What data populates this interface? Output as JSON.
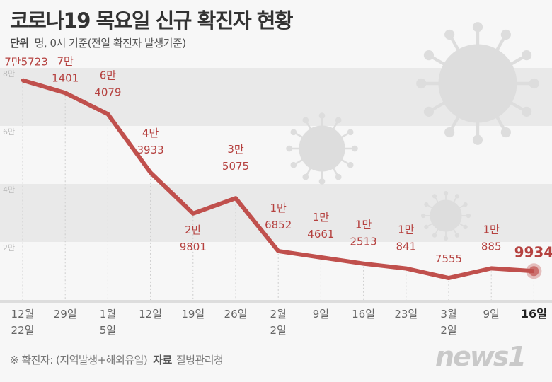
{
  "header": {
    "title": "코로나19 목요일 신규 확진자 현황",
    "unit_label": "단위",
    "unit_text": "명, 0시 기준(전일 확진자 발생기준)"
  },
  "footer": {
    "note": "※ 확진자: (지역발생+해외유입)",
    "source_label": "자료",
    "source": "질병관리청",
    "logo": "news1"
  },
  "colors": {
    "line": "#c0504d",
    "label": "#b5413f",
    "band": "#e9e9e9"
  },
  "chart_data": {
    "type": "line",
    "title": "코로나19 목요일 신규 확진자 현황",
    "ylabel": "명",
    "ylim": [
      0,
      80000
    ],
    "yticks": [
      {
        "v": 20000,
        "label": "2만"
      },
      {
        "v": 40000,
        "label": "4만"
      },
      {
        "v": 60000,
        "label": "6만"
      },
      {
        "v": 80000,
        "label": "8만"
      }
    ],
    "categories": [
      [
        "12월",
        "22일"
      ],
      [
        "29일"
      ],
      [
        "1월",
        "5일"
      ],
      [
        "12일"
      ],
      [
        "19일"
      ],
      [
        "26일"
      ],
      [
        "2월",
        "2일"
      ],
      [
        "9일"
      ],
      [
        "16일"
      ],
      [
        "23일"
      ],
      [
        "3월",
        "2일"
      ],
      [
        "9일"
      ],
      [
        "16일"
      ]
    ],
    "values": [
      75723,
      71401,
      64079,
      43933,
      29801,
      35075,
      16852,
      14661,
      12513,
      10841,
      7555,
      10885,
      9934
    ],
    "labels": [
      [
        "7만5723"
      ],
      [
        "7만",
        "1401"
      ],
      [
        "6만",
        "4079"
      ],
      [
        "4만",
        "3933"
      ],
      [
        "2만",
        "9801"
      ],
      [
        "3만",
        "5075"
      ],
      [
        "1만",
        "6852"
      ],
      [
        "1만",
        "4661"
      ],
      [
        "1만",
        "2513"
      ],
      [
        "1만",
        "841"
      ],
      [
        "7555"
      ],
      [
        "1만",
        "885"
      ],
      [
        "9934"
      ]
    ]
  }
}
